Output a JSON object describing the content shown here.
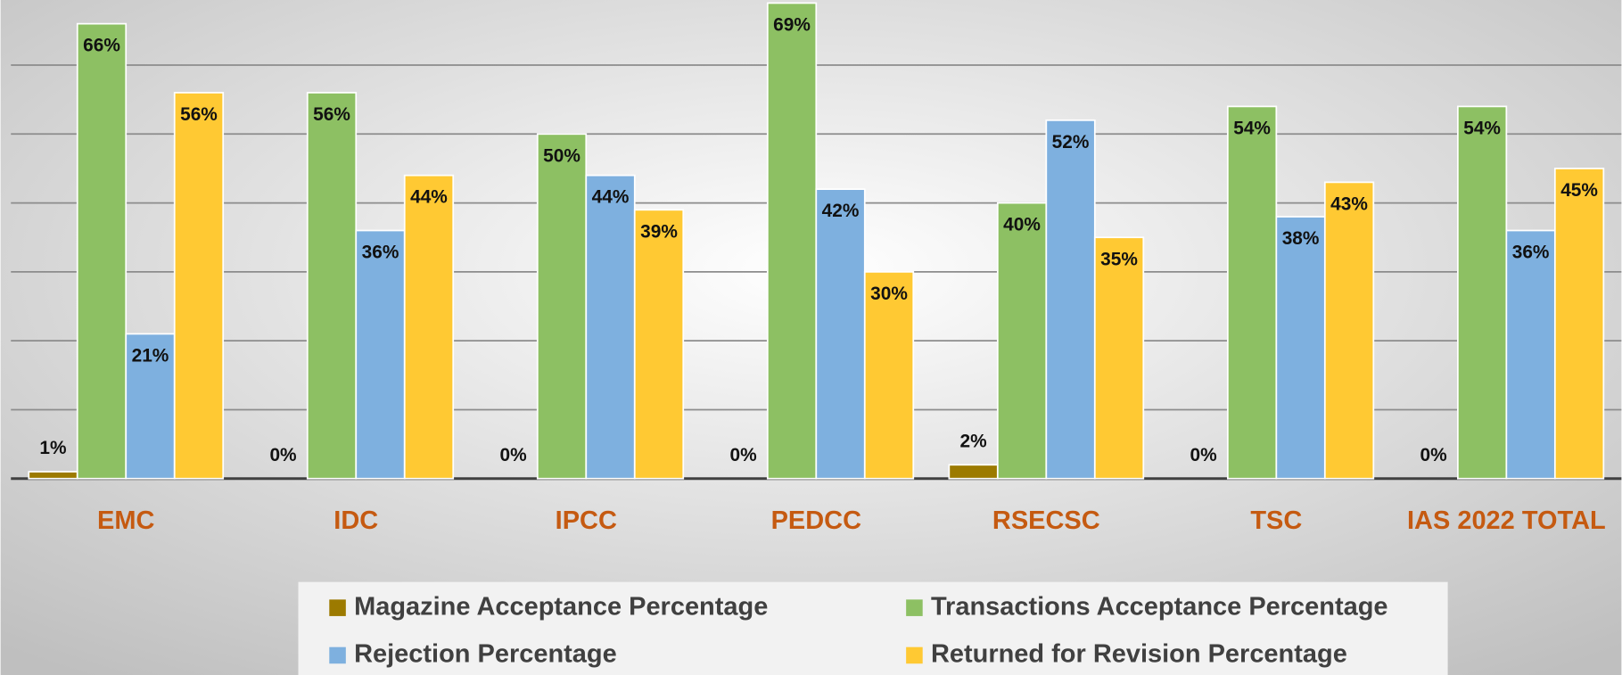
{
  "chart_data": {
    "type": "bar",
    "categories": [
      "EMC",
      "IDC",
      "IPCC",
      "PEDCC",
      "RSECSC",
      "TSC",
      "IAS 2022 TOTAL"
    ],
    "series": [
      {
        "name": "Magazine Acceptance Percentage",
        "color": "#9c7a00",
        "values": [
          1,
          0,
          0,
          0,
          2,
          0,
          0
        ],
        "value_labels": [
          "1%",
          "0%",
          "0%",
          "0%",
          "2%",
          "0%",
          "0%"
        ]
      },
      {
        "name": "Transactions Acceptance Percentage",
        "color": "#8dc063",
        "values": [
          66,
          56,
          50,
          69,
          40,
          54,
          54
        ],
        "value_labels": [
          "66%",
          "56%",
          "50%",
          "69%",
          "40%",
          "54%",
          "54%"
        ]
      },
      {
        "name": "Rejection Percentage",
        "color": "#7eb0df",
        "values": [
          21,
          36,
          44,
          42,
          52,
          38,
          36
        ],
        "value_labels": [
          "21%",
          "36%",
          "44%",
          "42%",
          "52%",
          "38%",
          "36%"
        ]
      },
      {
        "name": "Returned for Revision Percentage",
        "color": "#ffc933",
        "values": [
          56,
          44,
          39,
          30,
          35,
          43,
          45
        ],
        "value_labels": [
          "56%",
          "44%",
          "39%",
          "30%",
          "35%",
          "43%",
          "45%"
        ]
      }
    ],
    "ylim": [
      0,
      70
    ],
    "yticks": [
      0,
      10,
      20,
      30,
      40,
      50,
      60,
      70
    ],
    "grid": true,
    "legend": "bottom"
  }
}
